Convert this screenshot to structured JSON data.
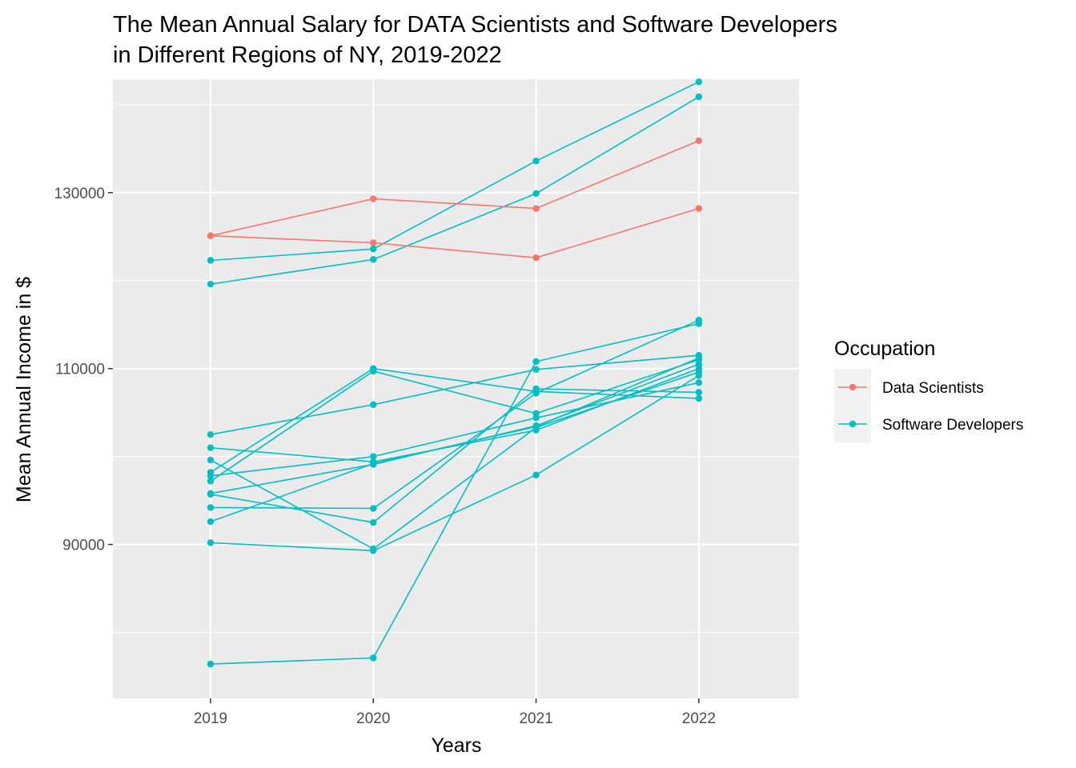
{
  "chart_data": {
    "type": "line",
    "title_line1": "The Mean Annual Salary for DATA Scientists and Software Developers",
    "title_line2": "in Different Regions of NY, 2019-2022",
    "xlabel": "Years",
    "ylabel": "Mean Annual Income in $",
    "x": [
      2019,
      2020,
      2021,
      2022
    ],
    "x_tick_labels": [
      "2019",
      "2020",
      "2021",
      "2022"
    ],
    "y_ticks": [
      90000,
      110000,
      130000
    ],
    "y_tick_labels": [
      "90000",
      "110000",
      "130000"
    ],
    "ylim": [
      72500,
      142900
    ],
    "grid": true,
    "legend": {
      "title": "Occupation",
      "position": "right",
      "entries": [
        {
          "label": "Data Scientists",
          "color": "#F8766D"
        },
        {
          "label": "Software Developers",
          "color": "#00BFC4"
        }
      ]
    },
    "groups": [
      {
        "occupation": "Data Scientists",
        "values": [
          125100,
          129300,
          128200,
          135900
        ]
      },
      {
        "occupation": "Data Scientists",
        "values": [
          125100,
          124300,
          122600,
          128200
        ]
      },
      {
        "occupation": "Software Developers",
        "values": [
          122300,
          123600,
          133600,
          142600
        ]
      },
      {
        "occupation": "Software Developers",
        "values": [
          119600,
          122400,
          129900,
          140900
        ]
      },
      {
        "occupation": "Software Developers",
        "values": [
          102500,
          105900,
          109900,
          111500
        ]
      },
      {
        "occupation": "Software Developers",
        "values": [
          101000,
          99400,
          103000,
          110000
        ]
      },
      {
        "occupation": "Software Developers",
        "values": [
          99600,
          89500,
          103300,
          109600
        ]
      },
      {
        "occupation": "Software Developers",
        "values": [
          98200,
          110000,
          107400,
          106600
        ]
      },
      {
        "occupation": "Software Developers",
        "values": [
          97800,
          100000,
          104400,
          108400
        ]
      },
      {
        "occupation": "Software Developers",
        "values": [
          97200,
          109700,
          104900,
          111000
        ]
      },
      {
        "occupation": "Software Developers",
        "values": [
          95800,
          99100,
          103500,
          110500
        ]
      },
      {
        "occupation": "Software Developers",
        "values": [
          95700,
          92500,
          107700,
          107300
        ]
      },
      {
        "occupation": "Software Developers",
        "values": [
          94200,
          94100,
          107200,
          115500
        ]
      },
      {
        "occupation": "Software Developers",
        "values": [
          92600,
          99200,
          103400,
          111200
        ]
      },
      {
        "occupation": "Software Developers",
        "values": [
          90200,
          89300,
          97900,
          109200
        ]
      },
      {
        "occupation": "Software Developers",
        "values": [
          76400,
          77100,
          110800,
          115100
        ]
      }
    ]
  },
  "colors": {
    "data_scientists": "#F8766D",
    "software_developers": "#00BFC4",
    "panel_background": "#EBEBEB",
    "grid_major": "#FFFFFF",
    "tick_label": "#4D4D4D"
  }
}
